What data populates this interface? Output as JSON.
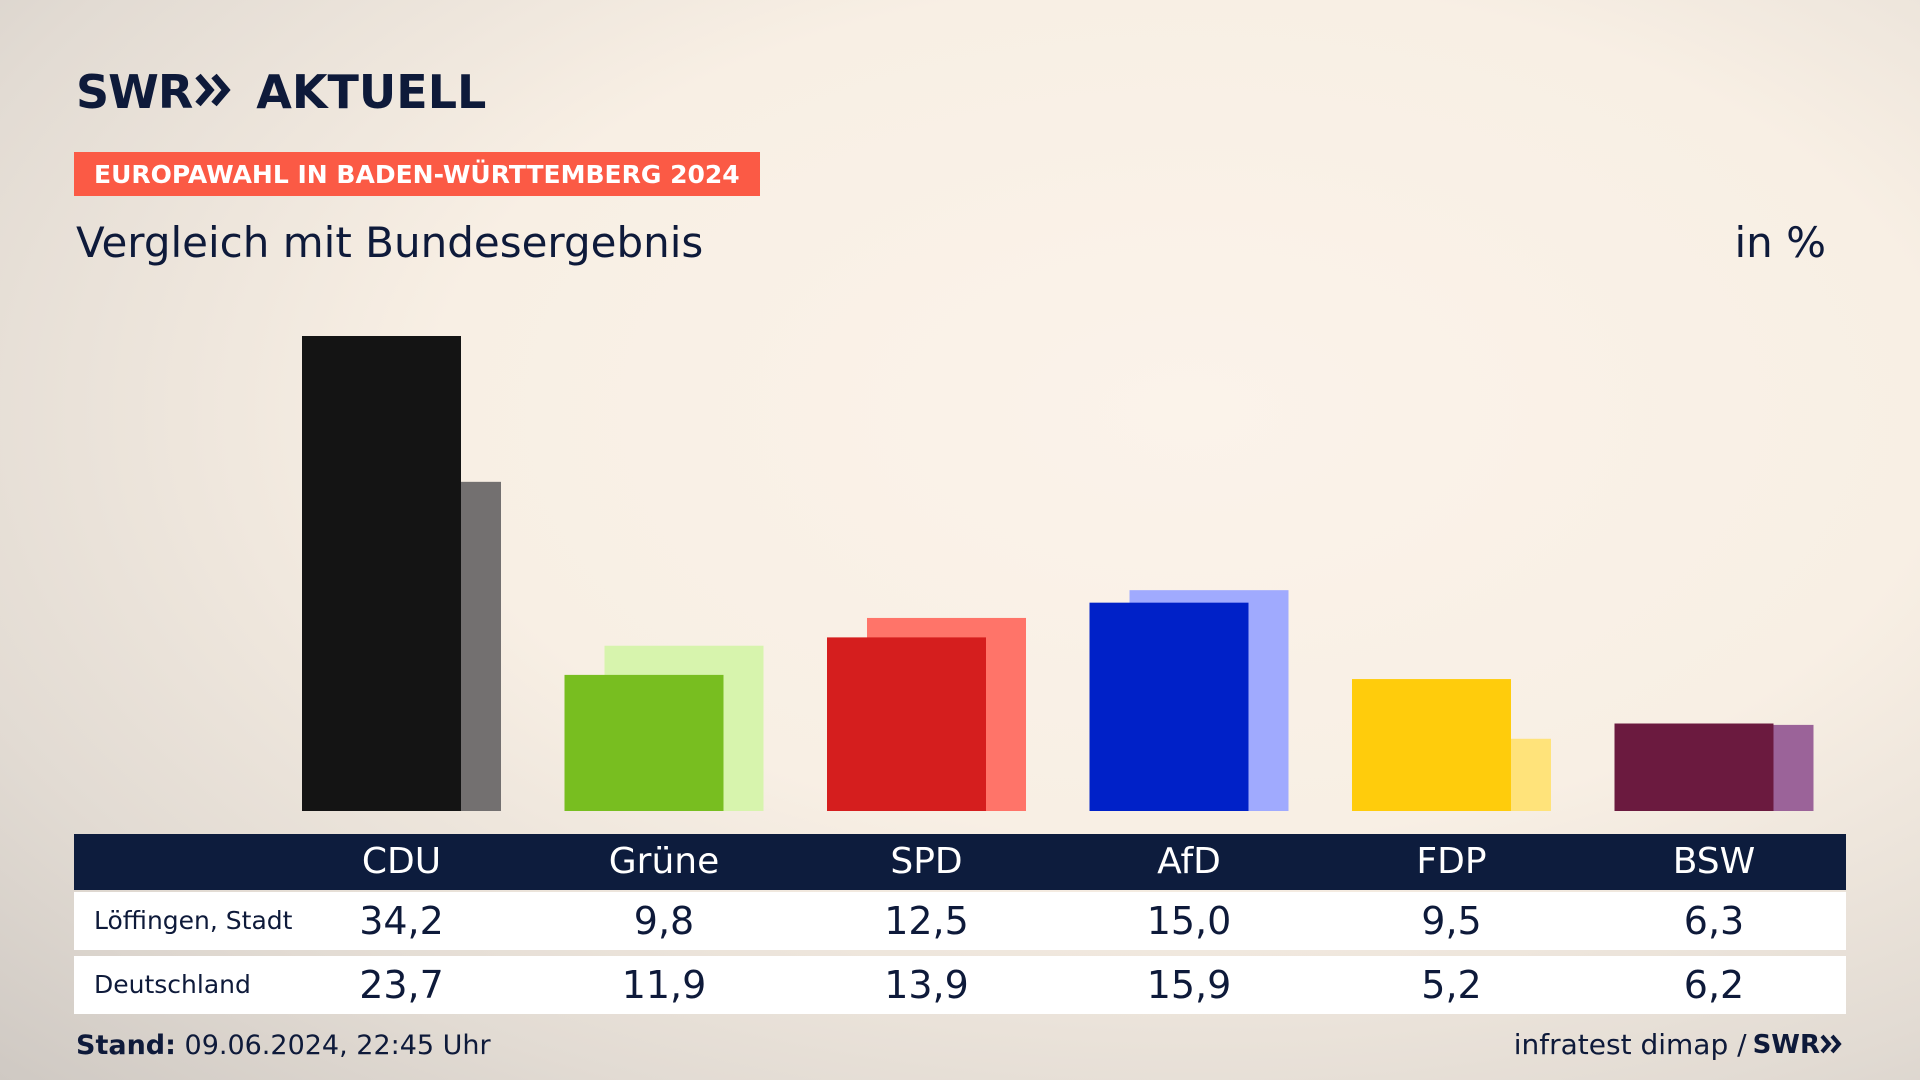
{
  "brand": {
    "logo_left": "SWR",
    "logo_right": "AKTUELL",
    "footer_logo": "SWR"
  },
  "header": {
    "tag": "EUROPAWAHL IN BADEN-WÜRTTEMBERG 2024",
    "subtitle": "Vergleich mit Bundesergebnis",
    "unit": "in %"
  },
  "table": {
    "rows": [
      {
        "label": "Löffingen, Stadt",
        "values": [
          "34,2",
          "9,8",
          "12,5",
          "15,0",
          "9,5",
          "6,3"
        ]
      },
      {
        "label": "Deutschland",
        "values": [
          "23,7",
          "11,9",
          "13,9",
          "15,9",
          "5,2",
          "6,2"
        ]
      }
    ]
  },
  "footer": {
    "stand_label": "Stand:",
    "stand_value": "09.06.2024, 22:45 Uhr",
    "source": "infratest dimap /"
  },
  "chart_data": {
    "type": "bar",
    "categories": [
      "CDU",
      "Grüne",
      "SPD",
      "AfD",
      "FDP",
      "BSW"
    ],
    "series": [
      {
        "name": "Löffingen, Stadt",
        "values": [
          34.2,
          9.8,
          12.5,
          15.0,
          9.5,
          6.3
        ]
      },
      {
        "name": "Deutschland",
        "values": [
          23.7,
          11.9,
          13.9,
          15.9,
          5.2,
          6.2
        ]
      }
    ],
    "colors": {
      "primary": [
        "#141414",
        "#78be20",
        "#d51e1e",
        "#0021c8",
        "#ffcc0c",
        "#6b1a3f"
      ],
      "secondary": [
        "#737070",
        "#d7f4ad",
        "#ff7469",
        "#a0aafe",
        "#ffe37a",
        "#9b6399"
      ]
    },
    "ylim": [
      0,
      34.2
    ],
    "grid": false,
    "legend": "none"
  }
}
